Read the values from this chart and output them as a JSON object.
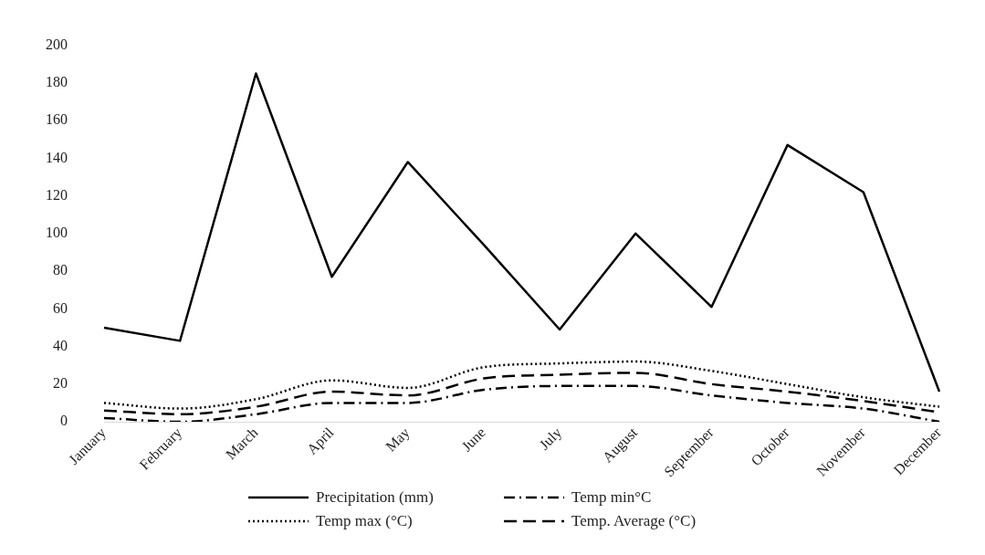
{
  "chart_data": {
    "type": "line",
    "categories": [
      "January",
      "February",
      "March",
      "April",
      "May",
      "June",
      "July",
      "August",
      "September",
      "October",
      "November",
      "December"
    ],
    "series": [
      {
        "name": "Precipitation (mm)",
        "color": "#000000",
        "line_style": "solid",
        "values": [
          50,
          43,
          185,
          77,
          138,
          94,
          49,
          100,
          61,
          147,
          122,
          16
        ]
      },
      {
        "name": "Temp min°C",
        "color": "#000000",
        "line_style": "dashdot",
        "values": [
          2,
          0,
          4,
          10,
          10,
          17,
          19,
          19,
          14,
          10,
          7,
          0
        ]
      },
      {
        "name": "Temp max (°C)",
        "color": "#000000",
        "line_style": "dotted",
        "values": [
          10,
          7,
          12,
          22,
          18,
          29,
          31,
          32,
          27,
          20,
          13,
          8
        ]
      },
      {
        "name": "Temp. Average (°C)",
        "color": "#000000",
        "line_style": "dashed",
        "values": [
          6,
          4,
          8,
          16,
          14,
          23,
          25,
          26,
          20,
          16,
          11,
          5
        ]
      }
    ],
    "ylim": [
      0,
      200
    ],
    "yticks": [
      0,
      20,
      40,
      60,
      80,
      100,
      120,
      140,
      160,
      180,
      200
    ],
    "grid": false,
    "legend": "bottom",
    "marker": "none"
  }
}
